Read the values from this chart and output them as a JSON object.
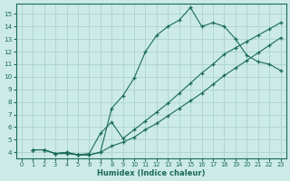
{
  "xlabel": "Humidex (Indice chaleur)",
  "bg_color": "#cceae8",
  "grid_color": "#aad4cc",
  "line_color": "#1a6b5a",
  "xlim": [
    -0.5,
    23.5
  ],
  "ylim": [
    3.5,
    15.8
  ],
  "xticks": [
    0,
    1,
    2,
    3,
    4,
    5,
    6,
    7,
    8,
    9,
    10,
    11,
    12,
    13,
    14,
    15,
    16,
    17,
    18,
    19,
    20,
    21,
    22,
    23
  ],
  "yticks": [
    4,
    5,
    6,
    7,
    8,
    9,
    10,
    11,
    12,
    13,
    14,
    15
  ],
  "line1_x": [
    1,
    2,
    3,
    4,
    5,
    6,
    7,
    8,
    9,
    10,
    11,
    12,
    13,
    14,
    15,
    16,
    17,
    18,
    19,
    20,
    21,
    22,
    23
  ],
  "line1_y": [
    4.2,
    4.2,
    3.9,
    3.9,
    3.8,
    3.8,
    4.0,
    7.5,
    8.5,
    9.9,
    12.0,
    13.3,
    14.0,
    14.5,
    15.5,
    14.0,
    14.3,
    14.0,
    13.0,
    11.7,
    11.2,
    11.0,
    10.5
  ],
  "line2_x": [
    1,
    2,
    3,
    4,
    5,
    6,
    7,
    8,
    9,
    10,
    11,
    12,
    13,
    14,
    15,
    16,
    17,
    18,
    19,
    20,
    21,
    22,
    23
  ],
  "line2_y": [
    4.2,
    4.2,
    3.9,
    4.0,
    3.8,
    3.9,
    5.5,
    6.4,
    5.1,
    5.8,
    6.5,
    7.2,
    7.9,
    8.7,
    9.5,
    10.3,
    11.0,
    11.8,
    12.3,
    12.8,
    13.3,
    13.8,
    14.3
  ],
  "line3_x": [
    1,
    2,
    3,
    4,
    5,
    6,
    7,
    8,
    9,
    10,
    11,
    12,
    13,
    14,
    15,
    16,
    17,
    18,
    19,
    20,
    21,
    22,
    23
  ],
  "line3_y": [
    4.2,
    4.2,
    3.9,
    4.0,
    3.8,
    3.8,
    4.0,
    4.5,
    4.8,
    5.2,
    5.8,
    6.3,
    6.9,
    7.5,
    8.1,
    8.7,
    9.4,
    10.1,
    10.7,
    11.3,
    11.9,
    12.5,
    13.1
  ]
}
